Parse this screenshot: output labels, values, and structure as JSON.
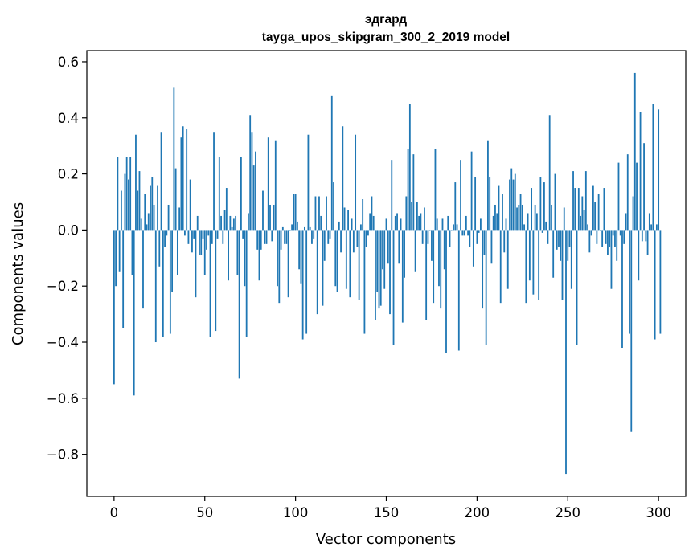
{
  "chart_data": {
    "type": "bar",
    "title": "эдгард",
    "subtitle": "tayga_upos_skipgram_300_2_2019 model",
    "xlabel": "Vector components",
    "ylabel": "Components values",
    "xlim": [
      -15,
      315
    ],
    "ylim": [
      -0.95,
      0.64
    ],
    "xticks": [
      0,
      50,
      100,
      150,
      200,
      250,
      300
    ],
    "xtick_labels": [
      "0",
      "50",
      "100",
      "150",
      "200",
      "250",
      "300"
    ],
    "yticks": [
      -0.8,
      -0.6,
      -0.4,
      -0.2,
      0.0,
      0.2,
      0.4,
      0.6
    ],
    "ytick_labels": [
      "−0.8",
      "−0.6",
      "−0.4",
      "−0.2",
      "0.0",
      "0.2",
      "0.4",
      "0.6"
    ],
    "grid": false,
    "bar_color": "#1f77b4",
    "x_start": 0,
    "values": [
      -0.55,
      -0.2,
      0.26,
      -0.15,
      0.14,
      -0.35,
      0.2,
      0.26,
      0.18,
      0.26,
      -0.16,
      -0.59,
      0.34,
      0.14,
      0.21,
      0.04,
      -0.28,
      0.13,
      0.02,
      0.06,
      0.16,
      0.19,
      0.09,
      -0.4,
      0.16,
      -0.13,
      0.35,
      -0.38,
      -0.06,
      -0.02,
      0.09,
      -0.37,
      -0.22,
      0.51,
      0.22,
      -0.16,
      0.08,
      0.33,
      0.37,
      -0.02,
      0.36,
      -0.05,
      0.18,
      -0.08,
      -0.03,
      -0.24,
      0.05,
      -0.09,
      -0.09,
      -0.03,
      -0.16,
      -0.07,
      -0.02,
      -0.38,
      -0.05,
      0.35,
      -0.36,
      -0.03,
      0.26,
      0.05,
      -0.05,
      0.07,
      0.15,
      -0.18,
      0.05,
      0.01,
      0.04,
      0.05,
      -0.16,
      -0.53,
      0.26,
      -0.03,
      -0.2,
      -0.38,
      0.06,
      0.41,
      0.35,
      0.23,
      0.28,
      -0.07,
      -0.18,
      -0.07,
      0.14,
      -0.05,
      -0.05,
      0.33,
      0.09,
      -0.04,
      0.09,
      0.32,
      -0.2,
      -0.26,
      -0.07,
      0.01,
      -0.05,
      -0.05,
      -0.24,
      0.0,
      0.02,
      0.13,
      0.13,
      0.03,
      -0.14,
      -0.19,
      -0.39,
      0.01,
      -0.37,
      0.34,
      0.01,
      -0.05,
      -0.03,
      0.12,
      -0.3,
      0.12,
      0.05,
      -0.27,
      -0.11,
      0.12,
      -0.05,
      -0.03,
      0.48,
      0.17,
      -0.2,
      -0.22,
      0.03,
      -0.08,
      0.37,
      0.08,
      -0.21,
      0.07,
      -0.24,
      0.04,
      -0.08,
      0.34,
      -0.06,
      -0.25,
      0.02,
      0.11,
      -0.37,
      -0.06,
      -0.02,
      0.06,
      0.12,
      0.05,
      -0.32,
      -0.22,
      -0.28,
      -0.27,
      -0.14,
      -0.21,
      0.04,
      -0.12,
      -0.3,
      0.25,
      -0.41,
      0.05,
      0.06,
      -0.12,
      0.04,
      -0.33,
      -0.17,
      0.12,
      0.29,
      0.45,
      0.1,
      0.27,
      -0.15,
      0.1,
      0.05,
      0.06,
      -0.05,
      0.08,
      -0.32,
      -0.05,
      0.0,
      -0.11,
      -0.26,
      0.29,
      0.04,
      -0.2,
      -0.28,
      0.04,
      -0.14,
      -0.44,
      0.05,
      -0.06,
      0.0,
      0.02,
      0.17,
      0.02,
      -0.43,
      0.25,
      -0.02,
      -0.02,
      0.05,
      -0.02,
      -0.06,
      0.28,
      -0.13,
      0.19,
      -0.05,
      -0.01,
      0.04,
      -0.28,
      -0.09,
      -0.41,
      0.32,
      0.19,
      -0.12,
      0.05,
      0.09,
      0.06,
      0.16,
      -0.26,
      0.13,
      -0.08,
      0.04,
      -0.21,
      0.18,
      0.22,
      0.18,
      0.2,
      0.08,
      0.09,
      0.13,
      0.09,
      0.02,
      -0.26,
      0.06,
      -0.18,
      0.15,
      -0.23,
      0.09,
      0.06,
      -0.25,
      0.19,
      -0.01,
      0.17,
      0.03,
      -0.05,
      0.41,
      0.09,
      -0.17,
      0.2,
      -0.07,
      -0.06,
      -0.11,
      -0.25,
      0.08,
      -0.87,
      -0.11,
      -0.06,
      -0.21,
      0.21,
      0.15,
      -0.41,
      0.15,
      0.05,
      0.12,
      0.07,
      0.21,
      0.02,
      -0.08,
      -0.02,
      0.16,
      0.1,
      -0.05,
      0.13,
      0.0,
      -0.06,
      0.15,
      -0.05,
      -0.09,
      -0.06,
      -0.21,
      -0.02,
      -0.06,
      -0.11,
      0.24,
      -0.02,
      -0.42,
      -0.05,
      0.06,
      0.27,
      -0.37,
      -0.72,
      0.12,
      0.56,
      0.24,
      -0.18,
      0.42,
      -0.04,
      0.31,
      -0.04,
      -0.09,
      0.06,
      0.02,
      0.45,
      -0.39,
      0.02,
      0.43,
      -0.37
    ]
  }
}
